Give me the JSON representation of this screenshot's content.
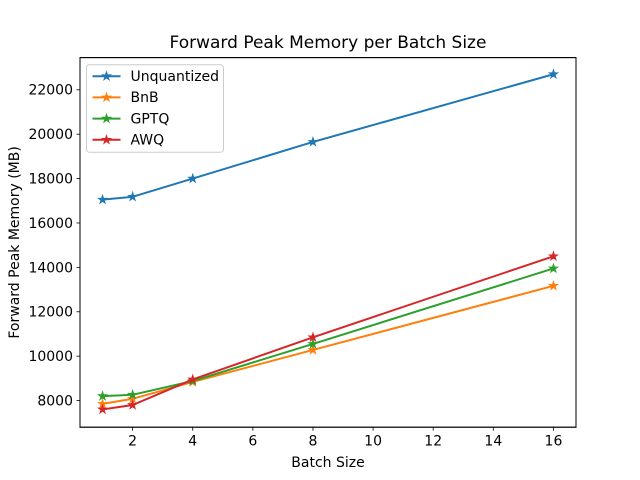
{
  "figure": {
    "background": "#ffffff"
  },
  "chart_data": {
    "type": "line",
    "title": "Forward Peak Memory per Batch Size",
    "xlabel": "Batch Size",
    "ylabel": "Forward Peak Memory (MB)",
    "x": [
      1,
      2,
      4,
      8,
      16
    ],
    "series": [
      {
        "name": "Unquantized",
        "color": "#1f77b4",
        "marker": "star",
        "values": [
          17050,
          17180,
          18000,
          19650,
          22700
        ]
      },
      {
        "name": "BnB",
        "color": "#ff7f0e",
        "marker": "star",
        "values": [
          7850,
          8080,
          8840,
          10280,
          13170
        ]
      },
      {
        "name": "GPTQ",
        "color": "#2ca02c",
        "marker": "star",
        "values": [
          8200,
          8260,
          8880,
          10550,
          13950
        ]
      },
      {
        "name": "AWQ",
        "color": "#d62728",
        "marker": "star",
        "values": [
          7600,
          7800,
          8950,
          10850,
          14500
        ]
      }
    ],
    "x_ticks": [
      2,
      4,
      6,
      8,
      10,
      12,
      14,
      16
    ],
    "y_ticks": [
      8000,
      10000,
      12000,
      14000,
      16000,
      18000,
      20000,
      22000
    ],
    "xlim": [
      0.25,
      16.75
    ],
    "ylim": [
      6800,
      23450
    ],
    "grid": false,
    "legend_position": "upper-left"
  },
  "colors": {
    "axis": "#000000",
    "tick_text": "#000000",
    "legend_border": "#cccccc",
    "legend_fill": "#ffffff"
  }
}
